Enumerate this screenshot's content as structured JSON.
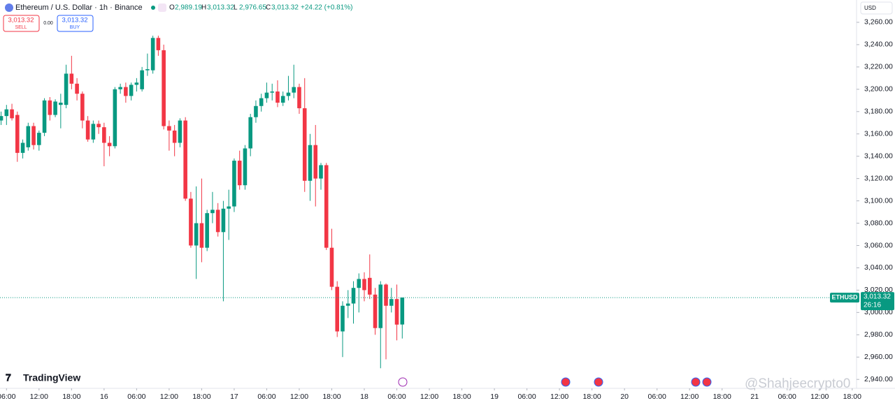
{
  "header": {
    "symbol": "Ethereum / U.S. Dollar · 1h · Binance",
    "ohlc": [
      {
        "key": "O",
        "value": "2,989.19"
      },
      {
        "key": "H",
        "value": "3,013.32"
      },
      {
        "key": "L",
        "value": "2,976.65"
      },
      {
        "key": "C",
        "value": "3,013.32"
      }
    ],
    "change": "+24.22 (+0.81%)",
    "sell": {
      "price": "3,013.32",
      "label": "SELL"
    },
    "spread": "0.00",
    "buy": {
      "price": "3,013.32",
      "label": "BUY"
    },
    "currency": "USD",
    "logo": "TradingView",
    "watermark": "@Shahjeecrypto0"
  },
  "chart_data": {
    "type": "candlestick",
    "up_color": "#089981",
    "down_color": "#f23645",
    "last_price_label": {
      "symbol": "ETHUSD",
      "price": "3,013.32",
      "countdown": "26:16"
    },
    "open": [
      3172,
      3176,
      3182,
      3177,
      3143,
      3148,
      3167,
      3150,
      3161,
      3190,
      3177,
      3186,
      3186,
      3214,
      3205,
      3196,
      3172,
      3155,
      3169,
      3166,
      3152,
      3149,
      3200,
      3202,
      3194,
      3204,
      3200,
      3217,
      3217,
      3246,
      3235,
      3167,
      3163,
      3152,
      3172,
      3102,
      3060,
      3080,
      3058,
      3089,
      3092,
      3072,
      3093,
      3095,
      3136,
      3114,
      3147,
      3175,
      3185,
      3192,
      3197,
      3198,
      3188,
      3194,
      3197,
      3202,
      3183,
      3118,
      3150,
      3120,
      3132,
      3058,
      3023,
      2983,
      3006,
      3008,
      3022,
      3030,
      3031,
      3016,
      2986,
      3025,
      3006,
      3012,
      2989.19
    ],
    "high": [
      3180,
      3186,
      3187,
      3180,
      3155,
      3170,
      3170,
      3163,
      3192,
      3193,
      3191,
      3196,
      3222,
      3230,
      3210,
      3198,
      3176,
      3172,
      3172,
      3170,
      3158,
      3202,
      3205,
      3206,
      3206,
      3210,
      3220,
      3232,
      3248,
      3248,
      3240,
      3172,
      3168,
      3174,
      3175,
      3108,
      3113,
      3120,
      3092,
      3108,
      3098,
      3100,
      3110,
      3138,
      3145,
      3150,
      3178,
      3190,
      3196,
      3206,
      3205,
      3208,
      3198,
      3212,
      3222,
      3205,
      3210,
      3160,
      3168,
      3134,
      3134,
      3075,
      3028,
      3010,
      3020,
      3028,
      3035,
      3036,
      3052,
      3022,
      3028,
      3026,
      3022,
      3025,
      3013.32
    ],
    "low": [
      3168,
      3168,
      3172,
      3135,
      3138,
      3145,
      3146,
      3145,
      3158,
      3172,
      3175,
      3165,
      3183,
      3200,
      3190,
      3165,
      3153,
      3152,
      3160,
      3131,
      3140,
      3147,
      3196,
      3188,
      3190,
      3198,
      3198,
      3212,
      3214,
      3230,
      3164,
      3145,
      3140,
      3148,
      3100,
      3058,
      3030,
      3045,
      3055,
      3080,
      3068,
      3010,
      3065,
      3090,
      3110,
      3110,
      3140,
      3170,
      3180,
      3188,
      3190,
      3184,
      3185,
      3190,
      3192,
      3178,
      3108,
      3100,
      3095,
      3110,
      3056,
      3020,
      2978,
      2960,
      2995,
      2990,
      3000,
      3010,
      3012,
      2980,
      2950,
      2958,
      3000,
      2975,
      2976.65
    ],
    "close": [
      3176,
      3182,
      3174,
      3143,
      3152,
      3167,
      3150,
      3161,
      3190,
      3177,
      3189,
      3188,
      3214,
      3205,
      3196,
      3172,
      3155,
      3169,
      3166,
      3152,
      3149,
      3200,
      3202,
      3194,
      3204,
      3206,
      3217,
      3218,
      3246,
      3235,
      3167,
      3163,
      3152,
      3172,
      3102,
      3060,
      3080,
      3058,
      3089,
      3092,
      3072,
      3093,
      3095,
      3136,
      3114,
      3147,
      3175,
      3185,
      3192,
      3197,
      3198,
      3188,
      3194,
      3197,
      3202,
      3183,
      3118,
      3150,
      3120,
      3132,
      3058,
      3023,
      2983,
      3006,
      3008,
      3022,
      3030,
      3020,
      3016,
      2986,
      3025,
      3006,
      3012,
      2989.1,
      3013.32
    ],
    "xlim": [
      -0.2,
      157.8
    ],
    "xticks": [
      {
        "value": 1,
        "label": "06:00"
      },
      {
        "value": 7,
        "label": "12:00"
      },
      {
        "value": 13,
        "label": "18:00"
      },
      {
        "value": 19,
        "label": "16"
      },
      {
        "value": 25,
        "label": "06:00"
      },
      {
        "value": 31,
        "label": "12:00"
      },
      {
        "value": 37,
        "label": "18:00"
      },
      {
        "value": 43,
        "label": "17"
      },
      {
        "value": 49,
        "label": "06:00"
      },
      {
        "value": 55,
        "label": "12:00"
      },
      {
        "value": 61,
        "label": "18:00"
      },
      {
        "value": 67,
        "label": "18"
      },
      {
        "value": 73,
        "label": "06:00"
      },
      {
        "value": 79,
        "label": "12:00"
      },
      {
        "value": 85,
        "label": "18:00"
      },
      {
        "value": 91,
        "label": "19"
      },
      {
        "value": 97,
        "label": "06:00"
      },
      {
        "value": 103,
        "label": "12:00"
      },
      {
        "value": 109,
        "label": "18:00"
      },
      {
        "value": 115,
        "label": "20"
      },
      {
        "value": 121,
        "label": "06:00"
      },
      {
        "value": 127,
        "label": "12:00"
      },
      {
        "value": 133,
        "label": "18:00"
      },
      {
        "value": 139,
        "label": "21"
      },
      {
        "value": 145,
        "label": "06:00"
      },
      {
        "value": 151,
        "label": "12:00"
      },
      {
        "value": 157,
        "label": "18:00"
      }
    ],
    "ylim": [
      2932,
      3280
    ],
    "yticks": [
      {
        "value": 2940,
        "label": "2,940.00"
      },
      {
        "value": 2960,
        "label": "2,960.00"
      },
      {
        "value": 2980,
        "label": "2,980.00"
      },
      {
        "value": 3000,
        "label": "3,000.00"
      },
      {
        "value": 3020,
        "label": "3,020.00"
      },
      {
        "value": 3040,
        "label": "3,040.00"
      },
      {
        "value": 3060,
        "label": "3,060.00"
      },
      {
        "value": 3080,
        "label": "3,080.00"
      },
      {
        "value": 3100,
        "label": "3,100.00"
      },
      {
        "value": 3120,
        "label": "3,120.00"
      },
      {
        "value": 3140,
        "label": "3,140.00"
      },
      {
        "value": 3160,
        "label": "3,160.00"
      },
      {
        "value": 3180,
        "label": "3,180.00"
      },
      {
        "value": 3200,
        "label": "3,200.00"
      },
      {
        "value": 3220,
        "label": "3,220.00"
      },
      {
        "value": 3240,
        "label": "3,240.00"
      },
      {
        "value": 3260,
        "label": "3,260.00"
      }
    ]
  }
}
